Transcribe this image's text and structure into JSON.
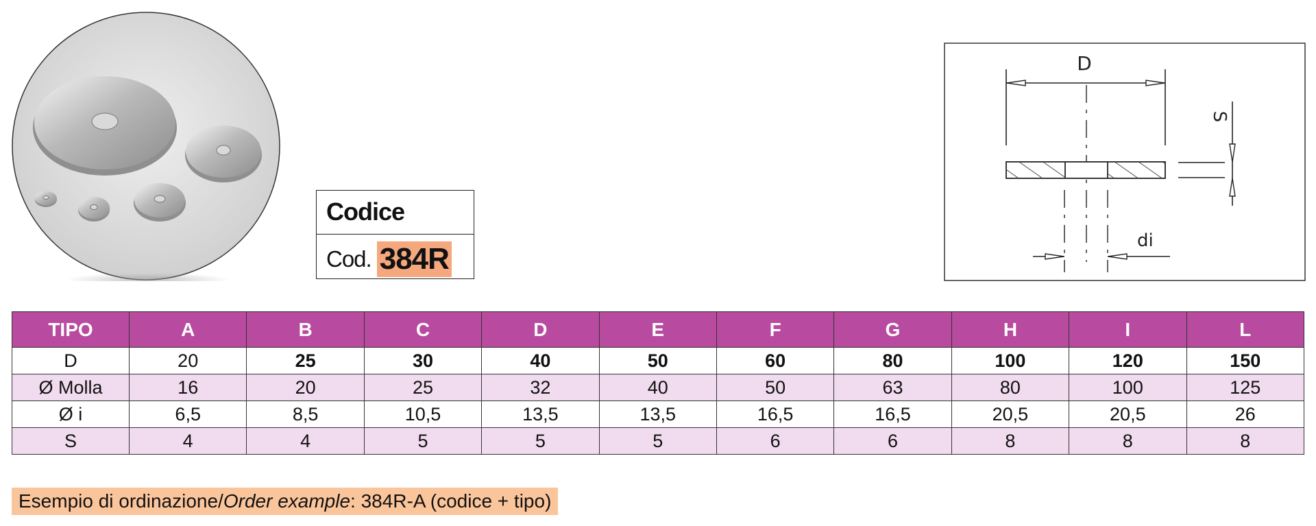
{
  "codice": {
    "header": "Codice",
    "cod_label": "Cod.",
    "cod_value": "384R"
  },
  "drawing": {
    "label_D": "D",
    "label_S": "S",
    "label_di": "di"
  },
  "table": {
    "header": [
      "TIPO",
      "A",
      "B",
      "C",
      "D",
      "E",
      "F",
      "G",
      "H",
      "I",
      "L"
    ],
    "rows": [
      {
        "label": "D",
        "values": [
          "20",
          "25",
          "30",
          "40",
          "50",
          "60",
          "80",
          "100",
          "120",
          "150"
        ]
      },
      {
        "label": "Ø Molla",
        "values": [
          "16",
          "20",
          "25",
          "32",
          "40",
          "50",
          "63",
          "80",
          "100",
          "125"
        ]
      },
      {
        "label": "Ø i",
        "values": [
          "6,5",
          "8,5",
          "10,5",
          "13,5",
          "13,5",
          "16,5",
          "16,5",
          "20,5",
          "20,5",
          "26"
        ]
      },
      {
        "label": "S",
        "values": [
          "4",
          "4",
          "5",
          "5",
          "5",
          "6",
          "6",
          "8",
          "8",
          "8"
        ]
      }
    ]
  },
  "example": {
    "prefix": "Esempio di ordinazione/",
    "italic": "Order example",
    "suffix": ": 384R-A (codice + tipo)"
  },
  "colors": {
    "header_bg": "#b84aa0",
    "alt_row_bg": "#f1dcef",
    "highlight": "#f5a77d",
    "example_bg": "#fbc59c"
  }
}
